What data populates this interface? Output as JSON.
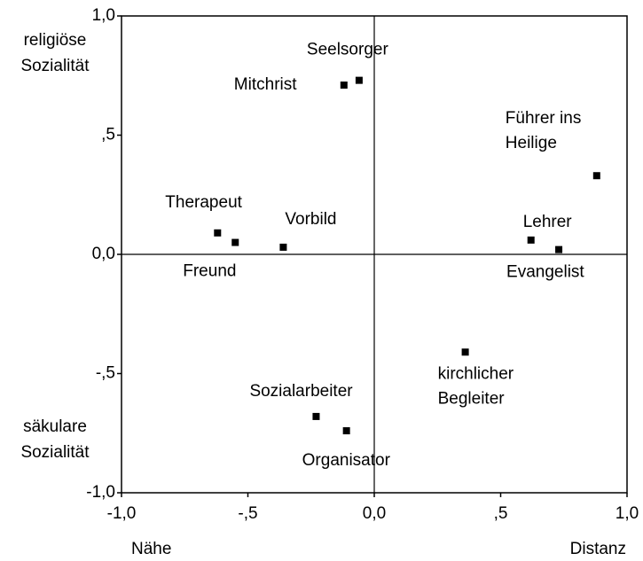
{
  "chart_data": {
    "type": "scatter",
    "x": [
      -0.12,
      -0.06,
      0.88,
      0.62,
      0.73,
      -0.62,
      -0.55,
      -0.36,
      0.36,
      -0.23,
      -0.11
    ],
    "values": [
      0.71,
      0.73,
      0.33,
      0.06,
      0.02,
      0.09,
      0.05,
      0.03,
      -0.41,
      -0.68,
      -0.74
    ],
    "point_labels": [
      [
        "Mitchrist"
      ],
      [
        "Seelsorger"
      ],
      [
        "Führer ins",
        "Heilige"
      ],
      [
        "Lehrer"
      ],
      [
        "Evangelist"
      ],
      [
        "Therapeut"
      ],
      [
        "Freund"
      ],
      [
        "Vorbild"
      ],
      [
        "kirchlicher",
        "Begleiter"
      ],
      [
        "Sozialarbeiter"
      ],
      [
        "Organisator"
      ]
    ],
    "color": "#000000",
    "xlim": [
      -1,
      1
    ],
    "ylim": [
      -1,
      1
    ],
    "xticks": [
      {
        "value": -1,
        "label": "-1,0"
      },
      {
        "value": -0.5,
        "label": "-,5"
      },
      {
        "value": 0,
        "label": "0,0"
      },
      {
        "value": 0.5,
        "label": ",5"
      },
      {
        "value": 1,
        "label": "1,0"
      }
    ],
    "yticks": [
      {
        "value": -1,
        "label": "-1,0"
      },
      {
        "value": -0.5,
        "label": "-,5"
      },
      {
        "value": 0,
        "label": "0,0"
      },
      {
        "value": 0.5,
        "label": ",5"
      },
      {
        "value": 1,
        "label": "1,0"
      }
    ],
    "y_top_label": [
      "religiöse",
      "Sozialität"
    ],
    "y_bottom_label": [
      "säkulare",
      "Sozialität"
    ],
    "x_left_label": "Nähe",
    "x_right_label": "Distanz"
  }
}
